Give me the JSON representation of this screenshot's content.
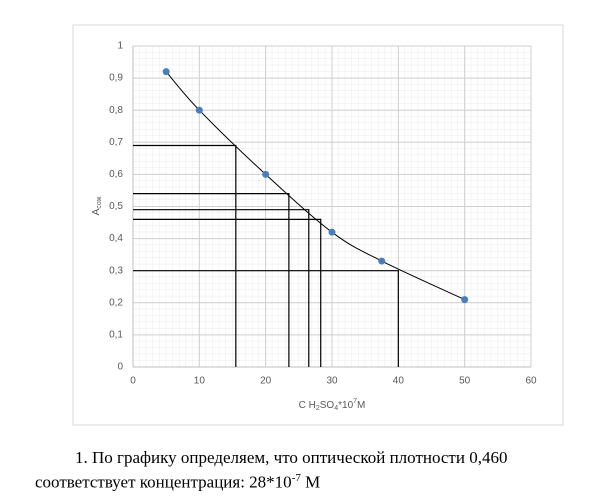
{
  "chart_data": {
    "type": "scatter",
    "x": [
      5,
      10,
      20,
      30,
      37.5,
      50
    ],
    "values": [
      0.92,
      0.8,
      0.6,
      0.42,
      0.33,
      0.21
    ],
    "color": "#4a7ebb",
    "curve": true,
    "xlim": [
      0,
      60
    ],
    "xticks": [
      0,
      10,
      20,
      30,
      40,
      50,
      60
    ],
    "ylim": [
      0,
      1
    ],
    "yticks": [
      0,
      {
        "value": 0.1,
        "label": "0,1"
      },
      {
        "value": 0.2,
        "label": "0,2"
      },
      {
        "value": 0.3,
        "label": "0,3"
      },
      {
        "value": 0.4,
        "label": "0,4"
      },
      {
        "value": 0.5,
        "label": "0,5"
      },
      {
        "value": 0.6,
        "label": "0,6"
      },
      {
        "value": 0.7,
        "label": "0,7"
      },
      {
        "value": 0.8,
        "label": "0,8"
      },
      {
        "value": 0.9,
        "label": "0,9"
      },
      1
    ],
    "grid": true,
    "reference_lines": [
      {
        "y": 0.69,
        "x": 15.5
      },
      {
        "y": 0.54,
        "x": 23.5
      },
      {
        "y": 0.49,
        "x": 26.5
      },
      {
        "y": 0.46,
        "x": 28.3
      },
      {
        "y": 0.3,
        "x": 40
      }
    ],
    "y_label_parts": [
      {
        "text": "A",
        "style": "normal"
      },
      {
        "text": "сож",
        "style": "sub"
      }
    ],
    "x_label_parts": [
      {
        "text": "C H",
        "style": "normal"
      },
      {
        "text": "2",
        "style": "sub"
      },
      {
        "text": "SO",
        "style": "normal"
      },
      {
        "text": "4",
        "style": "sub"
      },
      {
        "text": "*10",
        "style": "normal"
      },
      {
        "text": "7",
        "style": "sup"
      },
      {
        "text": "M",
        "style": "normal"
      }
    ]
  },
  "document": {
    "line1": "1. По графику определяем, что оптической плотности 0,460",
    "line2_main": "соответствует концентрация: 28*10",
    "line2_exponent": "-7",
    "line2_tail": " М"
  }
}
